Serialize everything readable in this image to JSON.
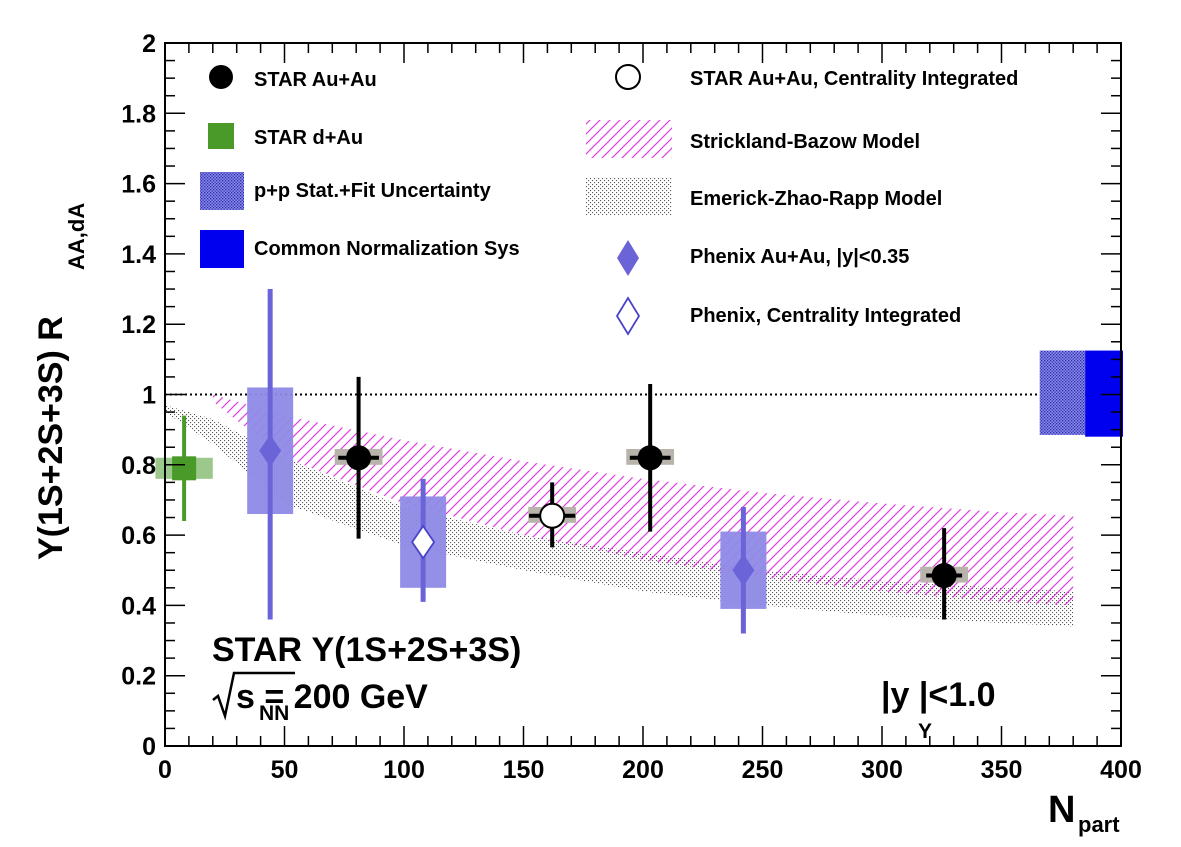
{
  "chart_data": {
    "type": "scatter",
    "xlabel": "N",
    "xlabel_sub": "part",
    "ylabel_main": "Υ(1S+2S+3S) R",
    "ylabel_sub": "AA,dA",
    "xlim": [
      0,
      400
    ],
    "ylim": [
      0,
      2
    ],
    "x_ticks": [
      "0",
      "50",
      "100",
      "150",
      "200",
      "250",
      "300",
      "350",
      "400"
    ],
    "y_ticks": [
      "0",
      "0.2",
      "0.4",
      "0.6",
      "0.8",
      "1",
      "1.2",
      "1.4",
      "1.6",
      "1.8",
      "2"
    ],
    "annotation_line1": "STAR  Υ(1S+2S+3S)",
    "annotation_line2": "s  = 200 GeV",
    "annotation_line2_sub": "NN",
    "annotation_rapidity": "|y |<1.0",
    "annotation_rapidity_sub": "Υ",
    "reference_line_y": 1.0,
    "legend": [
      "STAR Au+Au",
      "STAR d+Au",
      "p+p Stat.+Fit Uncertainty",
      "Common Normalization Sys",
      "STAR Au+Au, Centrality Integrated",
      "Strickland-Bazow Model",
      "Emerick-Zhao-Rapp Model",
      "Phenix Au+Au, |y|<0.35",
      "Phenix, Centrality Integrated"
    ],
    "colors": {
      "star": "#000000",
      "dau": "#4a9a2a",
      "dau_sys": "#9cc88c",
      "phenix": "#6a64d8",
      "phenix_box": "#8f8ae6",
      "norm": "#0000ee",
      "strickland": "#e040e0",
      "rapp": "#606060"
    },
    "series": [
      {
        "name": "STAR Au+Au",
        "points": [
          {
            "x": 81,
            "y": 0.82,
            "ylo": 0.59,
            "yhi": 1.05,
            "xerr": 6
          },
          {
            "x": 203,
            "y": 0.82,
            "ylo": 0.61,
            "yhi": 1.03,
            "xerr": 6
          },
          {
            "x": 326,
            "y": 0.485,
            "ylo": 0.36,
            "yhi": 0.62,
            "xerr": 5
          }
        ]
      },
      {
        "name": "STAR d+Au",
        "points": [
          {
            "x": 8,
            "y": 0.79,
            "ylo": 0.64,
            "yhi": 0.94,
            "xerr": 4
          }
        ]
      },
      {
        "name": "STAR Au+Au, Centrality Integrated",
        "points": [
          {
            "x": 162,
            "y": 0.655,
            "ylo": 0.565,
            "yhi": 0.75,
            "xerr": 8
          }
        ]
      },
      {
        "name": "Phenix Au+Au, |y|<0.35",
        "points": [
          {
            "x": 44,
            "y": 0.84,
            "ylo": 0.36,
            "yhi": 1.3,
            "box_lo": 0.66,
            "box_hi": 1.02
          },
          {
            "x": 242,
            "y": 0.5,
            "ylo": 0.32,
            "yhi": 0.68,
            "box_lo": 0.39,
            "box_hi": 0.61
          }
        ]
      },
      {
        "name": "Phenix, Centrality Integrated",
        "points": [
          {
            "x": 108,
            "y": 0.58,
            "ylo": 0.41,
            "yhi": 0.76,
            "box_lo": 0.45,
            "box_hi": 0.71
          }
        ]
      }
    ],
    "star_sys_boxes": [
      {
        "x": 81,
        "halfwidth": 10,
        "lo": 0.8,
        "hi": 0.845
      },
      {
        "x": 203,
        "halfwidth": 10,
        "lo": 0.8,
        "hi": 0.845
      },
      {
        "x": 326,
        "halfwidth": 10,
        "lo": 0.465,
        "hi": 0.51
      },
      {
        "x": 162,
        "halfwidth": 10,
        "lo": 0.635,
        "hi": 0.68
      }
    ],
    "dau_sys_box": {
      "x": 8,
      "halfwidth": 12,
      "lo": 0.76,
      "hi": 0.82
    },
    "models": {
      "strickland_upper": [
        [
          20,
          1.0
        ],
        [
          50,
          0.94
        ],
        [
          100,
          0.87
        ],
        [
          150,
          0.81
        ],
        [
          200,
          0.76
        ],
        [
          250,
          0.72
        ],
        [
          300,
          0.69
        ],
        [
          350,
          0.665
        ],
        [
          380,
          0.655
        ]
      ],
      "strickland_lower": [
        [
          20,
          0.98
        ],
        [
          50,
          0.82
        ],
        [
          100,
          0.69
        ],
        [
          150,
          0.6
        ],
        [
          200,
          0.53
        ],
        [
          250,
          0.48
        ],
        [
          300,
          0.44
        ],
        [
          350,
          0.41
        ],
        [
          380,
          0.4
        ]
      ],
      "rapp_upper": [
        [
          0,
          0.97
        ],
        [
          20,
          0.93
        ],
        [
          50,
          0.82
        ],
        [
          100,
          0.68
        ],
        [
          150,
          0.6
        ],
        [
          200,
          0.55
        ],
        [
          250,
          0.5
        ],
        [
          300,
          0.47
        ],
        [
          350,
          0.45
        ],
        [
          380,
          0.44
        ]
      ],
      "rapp_lower": [
        [
          0,
          0.95
        ],
        [
          20,
          0.86
        ],
        [
          50,
          0.69
        ],
        [
          100,
          0.57
        ],
        [
          150,
          0.5
        ],
        [
          200,
          0.44
        ],
        [
          250,
          0.4
        ],
        [
          300,
          0.37
        ],
        [
          350,
          0.35
        ],
        [
          380,
          0.34
        ]
      ]
    },
    "pp_band": {
      "x0": 366,
      "x1": 385,
      "lo": 0.885,
      "hi": 1.125
    },
    "norm_band": {
      "x0": 385,
      "x1": 402,
      "lo": 0.88,
      "hi": 1.125
    }
  }
}
